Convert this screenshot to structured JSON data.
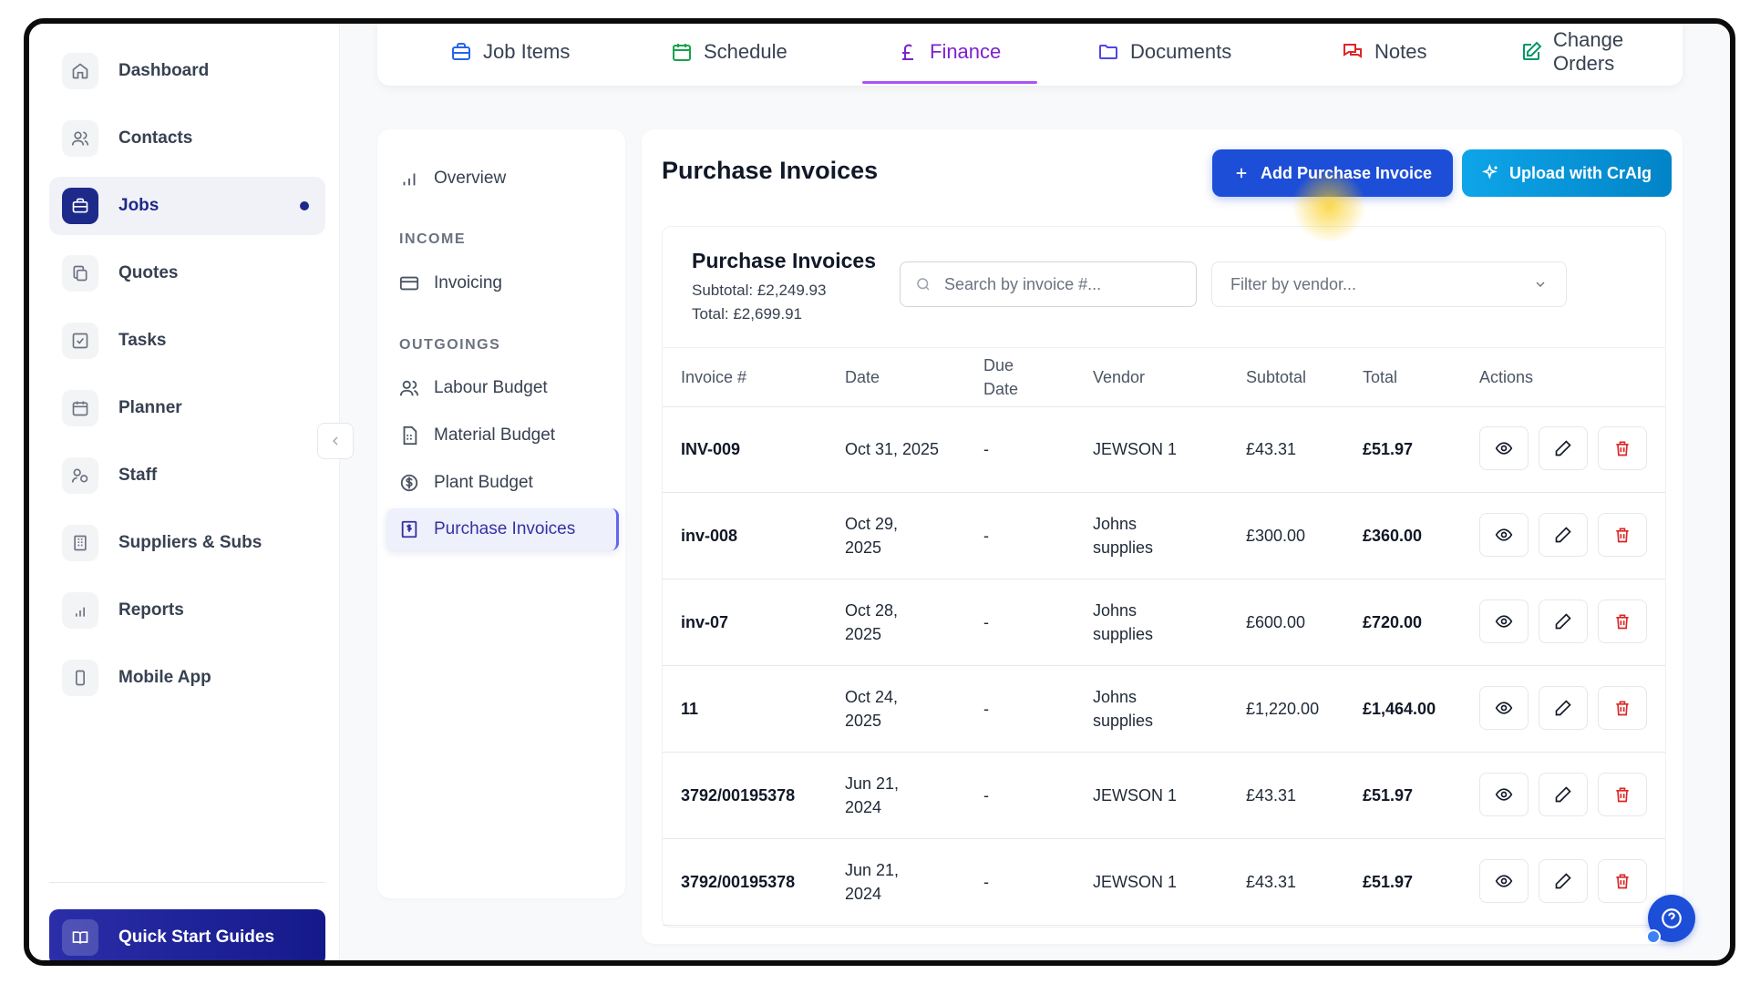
{
  "sidebar": {
    "items": [
      {
        "label": "Dashboard",
        "icon": "home-icon"
      },
      {
        "label": "Contacts",
        "icon": "users-icon"
      },
      {
        "label": "Jobs",
        "icon": "briefcase-icon",
        "active": true
      },
      {
        "label": "Quotes",
        "icon": "copy-icon"
      },
      {
        "label": "Tasks",
        "icon": "checkbox-icon"
      },
      {
        "label": "Planner",
        "icon": "calendar-icon"
      },
      {
        "label": "Staff",
        "icon": "staff-icon"
      },
      {
        "label": "Suppliers & Subs",
        "icon": "building-icon"
      },
      {
        "label": "Reports",
        "icon": "bar-chart-icon"
      },
      {
        "label": "Mobile App",
        "icon": "phone-icon"
      }
    ],
    "quick_start": "Quick Start Guides"
  },
  "tabs": [
    {
      "label": "Job Items",
      "icon": "briefcase-icon",
      "color": "#2563eb"
    },
    {
      "label": "Schedule",
      "icon": "calendar-icon",
      "color": "#16a34a"
    },
    {
      "label": "Finance",
      "icon": "pound-icon",
      "color": "#7e22ce",
      "active": true
    },
    {
      "label": "Documents",
      "icon": "folder-icon",
      "color": "#4f46e5"
    },
    {
      "label": "Notes",
      "icon": "chat-icon",
      "color": "#dc2626"
    },
    {
      "label": "Change Orders",
      "icon": "edit-icon",
      "color": "#059669"
    }
  ],
  "subnav": {
    "overview": "Overview",
    "income_heading": "INCOME",
    "invoicing": "Invoicing",
    "outgoings_heading": "OUTGOINGS",
    "labour_budget": "Labour Budget",
    "material_budget": "Material Budget",
    "plant_budget": "Plant Budget",
    "purchase_invoices": "Purchase Invoices"
  },
  "main": {
    "title": "Purchase Invoices",
    "add_button": "Add Purchase Invoice",
    "upload_button": "Upload with CrAIg",
    "card_title": "Purchase Invoices",
    "subtotal_text": "Subtotal: £2,249.93",
    "total_text": "Total: £2,699.91",
    "search_placeholder": "Search by invoice #...",
    "filter_placeholder": "Filter by vendor..."
  },
  "table": {
    "headers": {
      "invoice": "Invoice #",
      "date": "Date",
      "due_date_1": "Due",
      "due_date_2": "Date",
      "vendor": "Vendor",
      "subtotal": "Subtotal",
      "total": "Total",
      "actions": "Actions"
    },
    "rows": [
      {
        "invoice": "INV-009",
        "date1": "Oct 31, 2025",
        "date2": "",
        "due": "-",
        "vendor1": "JEWSON 1",
        "vendor2": "",
        "subtotal": "£43.31",
        "total": "£51.97"
      },
      {
        "invoice": "inv-008",
        "date1": "Oct 29,",
        "date2": "2025",
        "due": "-",
        "vendor1": "Johns",
        "vendor2": "supplies",
        "subtotal": "£300.00",
        "total": "£360.00"
      },
      {
        "invoice": "inv-07",
        "date1": "Oct 28,",
        "date2": "2025",
        "due": "-",
        "vendor1": "Johns",
        "vendor2": "supplies",
        "subtotal": "£600.00",
        "total": "£720.00"
      },
      {
        "invoice": "11",
        "date1": "Oct 24,",
        "date2": "2025",
        "due": "-",
        "vendor1": "Johns",
        "vendor2": "supplies",
        "subtotal": "£1,220.00",
        "total": "£1,464.00"
      },
      {
        "invoice": "3792/00195378",
        "date1": "Jun 21,",
        "date2": "2024",
        "due": "-",
        "vendor1": "JEWSON 1",
        "vendor2": "",
        "subtotal": "£43.31",
        "total": "£51.97"
      },
      {
        "invoice": "3792/00195378",
        "date1": "Jun 21,",
        "date2": "2024",
        "due": "-",
        "vendor1": "JEWSON 1",
        "vendor2": "",
        "subtotal": "£43.31",
        "total": "£51.97"
      }
    ]
  },
  "colors": {
    "accent": "#1e2a8a",
    "add_button": "#1d4ed8",
    "upload_button": "#0ea5e9",
    "finance_tab": "#7e22ce",
    "delete": "#dc2626"
  }
}
